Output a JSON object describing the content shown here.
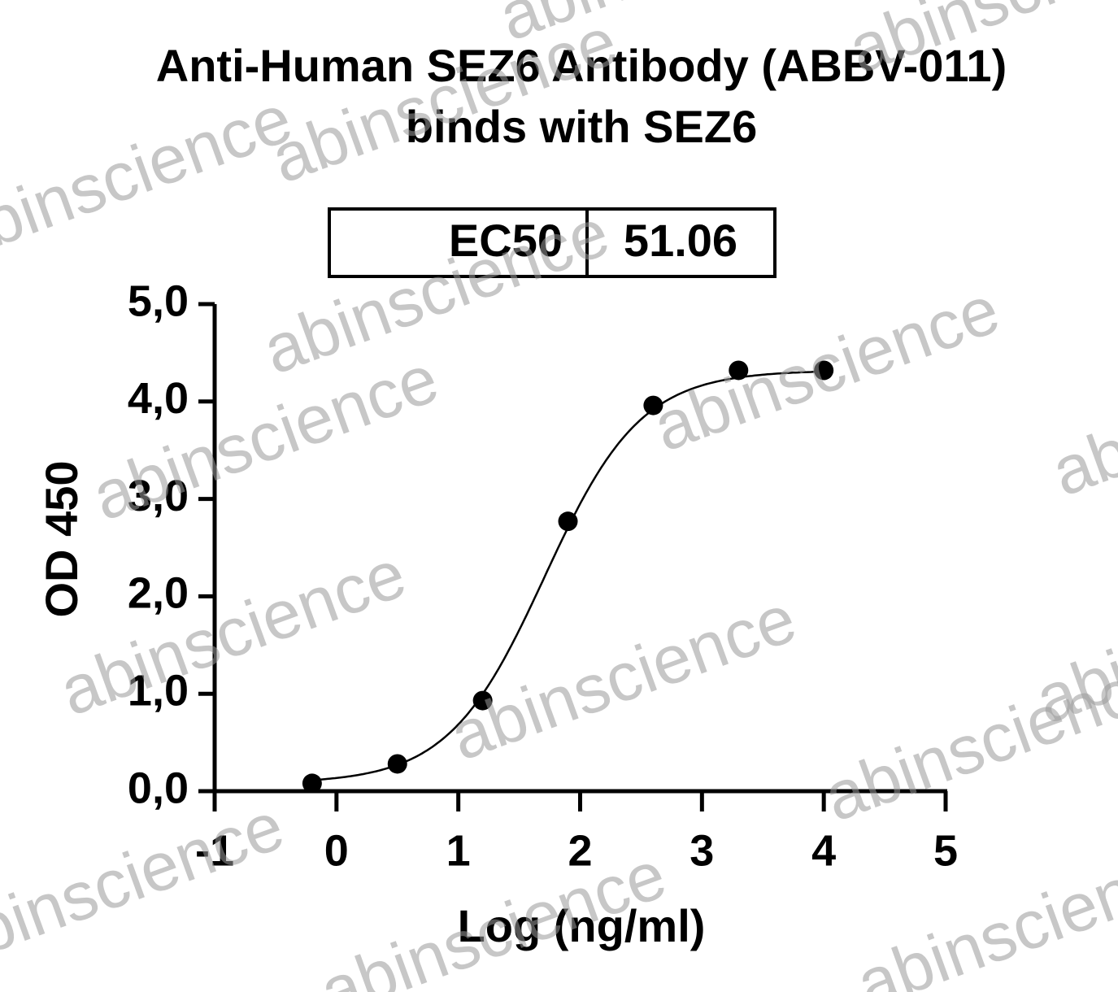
{
  "chart_data": {
    "type": "scatter",
    "title": "Anti-Human SEZ6 Antibody (ABBV-011)",
    "subtitle": "binds with SEZ6",
    "x_label": "Log (ng/ml)",
    "y_label": "OD 450",
    "annotation_table": {
      "label": "EC50",
      "value": 51.06
    },
    "watermark": "abinscience",
    "x": [
      -0.2,
      0.5,
      1.2,
      1.9,
      2.6,
      3.3,
      4.0
    ],
    "values": [
      0.08,
      0.28,
      0.93,
      2.77,
      3.96,
      4.32,
      4.32
    ],
    "color": "#000000",
    "xlim": [
      -1,
      5
    ],
    "ylim": [
      0,
      5
    ],
    "xticks": [
      -1,
      0,
      1,
      2,
      3,
      4,
      5
    ],
    "yticks": [
      {
        "value": 0,
        "label": "0,0"
      },
      {
        "value": 1,
        "label": "1,0"
      },
      {
        "value": 2,
        "label": "2,0"
      },
      {
        "value": 3,
        "label": "3,0"
      },
      {
        "value": 4,
        "label": "4,0"
      },
      {
        "value": 5,
        "label": "5,0"
      }
    ]
  }
}
